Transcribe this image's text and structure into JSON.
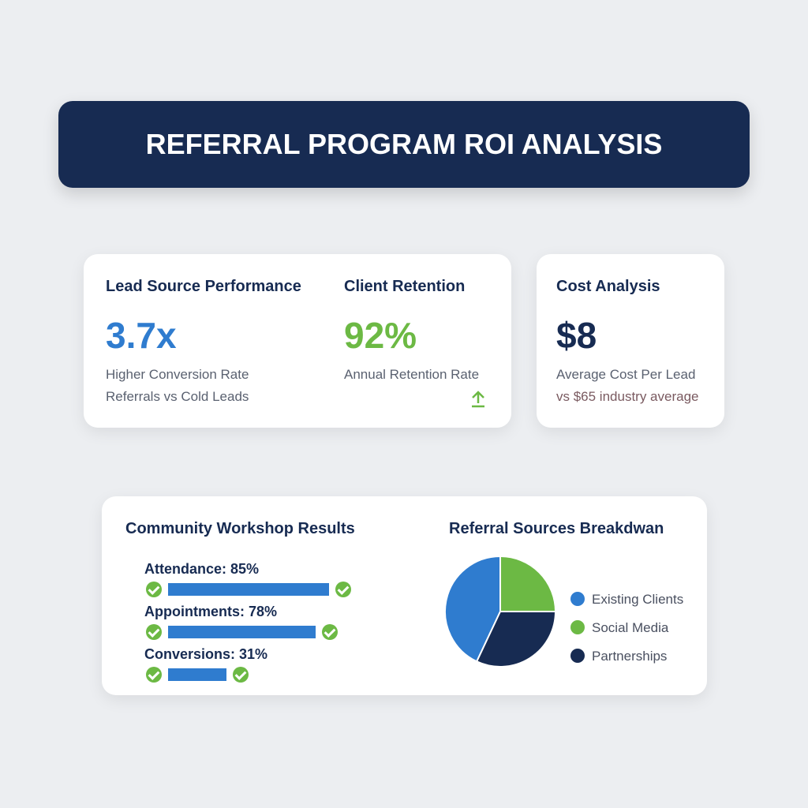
{
  "header": {
    "title": "REFERRAL PROGRAM ROI ANALYSIS"
  },
  "metrics": [
    {
      "title": "Lead Source Performance",
      "value": "3.7x",
      "lines": [
        "Higher Conversion Rate",
        "Referrals vs Cold Leads"
      ]
    },
    {
      "title": "Client Retention",
      "value": "92%",
      "lines": [
        "Annual Retention Rate"
      ]
    },
    {
      "title": "Cost Analysis",
      "value": "$8",
      "lines": [
        "Average Cost Per Lead",
        "vs $65 industry average"
      ]
    }
  ],
  "workshop": {
    "title": "Community Workshop Results",
    "color": "#2f7ccf",
    "items": [
      {
        "label": "Attendance: 85%",
        "value": 85
      },
      {
        "label": "Appointments: 78%",
        "value": 78
      },
      {
        "label": "Conversions: 31%",
        "value": 31
      }
    ]
  },
  "chart_data": {
    "type": "pie",
    "title": "Referral Sources Breakdwan",
    "categories": [
      "Existing Clients",
      "Social Media",
      "Partnerships"
    ],
    "values": [
      43,
      25,
      32
    ],
    "colors": [
      "#2f7ccf",
      "#6cb944",
      "#172b52"
    ]
  }
}
